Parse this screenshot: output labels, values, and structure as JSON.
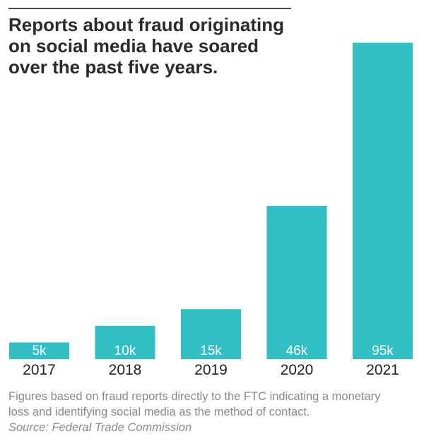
{
  "header": {
    "title_lines": [
      "Reports about fraud originating",
      "on social media have soared",
      "over the past five years."
    ]
  },
  "footer": {
    "note_lines": [
      "Figures based on fraud reports directly to the FTC indicating a monetary",
      "loss and identifying social media as the method of contact."
    ],
    "source": "Source: Federal Trade Commission"
  },
  "colors": {
    "bar": "#2fbfc4",
    "title": "#2b2b2b",
    "note": "#8a8a8a"
  },
  "chart_data": {
    "type": "bar",
    "title": "Reports about fraud originating on social media have soared over the past five years.",
    "categories": [
      "2017",
      "2018",
      "2019",
      "2020",
      "2021"
    ],
    "values": [
      5,
      10,
      15,
      46,
      95
    ],
    "value_labels": [
      "5k",
      "10k",
      "15k",
      "46k",
      "95k"
    ],
    "unit": "thousand reports",
    "ylim": [
      0,
      100
    ],
    "grid": false,
    "legend": "none"
  }
}
